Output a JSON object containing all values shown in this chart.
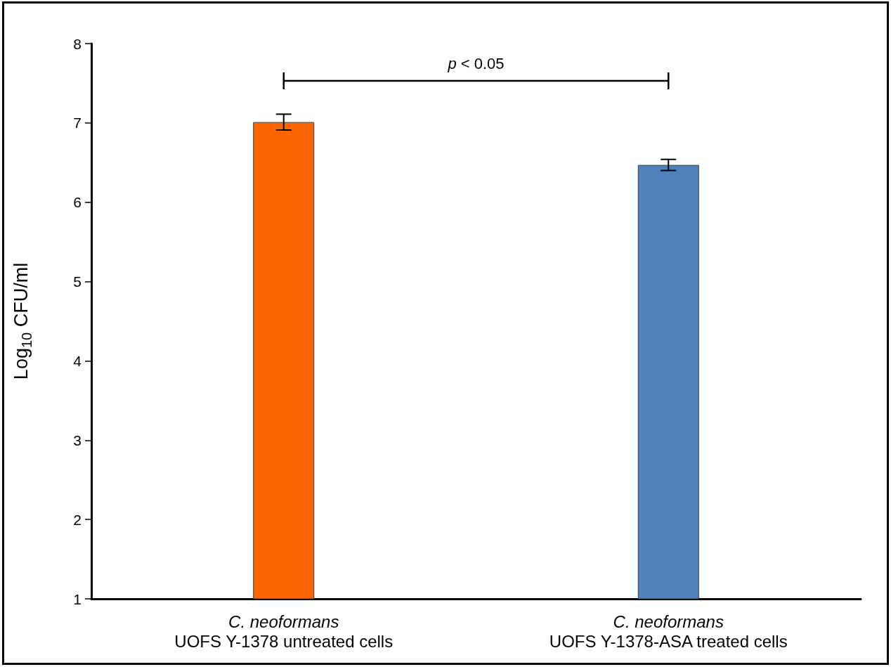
{
  "chart_data": {
    "type": "bar",
    "ylabel": "Log$_{10}$ CFU/ml",
    "categories": [
      "C. neoformans\nUOFS Y-1378 untreated cells",
      "C. neoformans\nUOFS Y-1378-ASA treated cells"
    ],
    "values": [
      7.01,
      6.47
    ],
    "colors": [
      "#ff6600",
      "#4f81bd"
    ],
    "errors": [
      0.1,
      0.07
    ],
    "ylim": [
      1,
      8
    ],
    "yticks": [
      1,
      2,
      3,
      4,
      5,
      6,
      7,
      8
    ],
    "annotations": [
      "p < 0.05"
    ]
  }
}
